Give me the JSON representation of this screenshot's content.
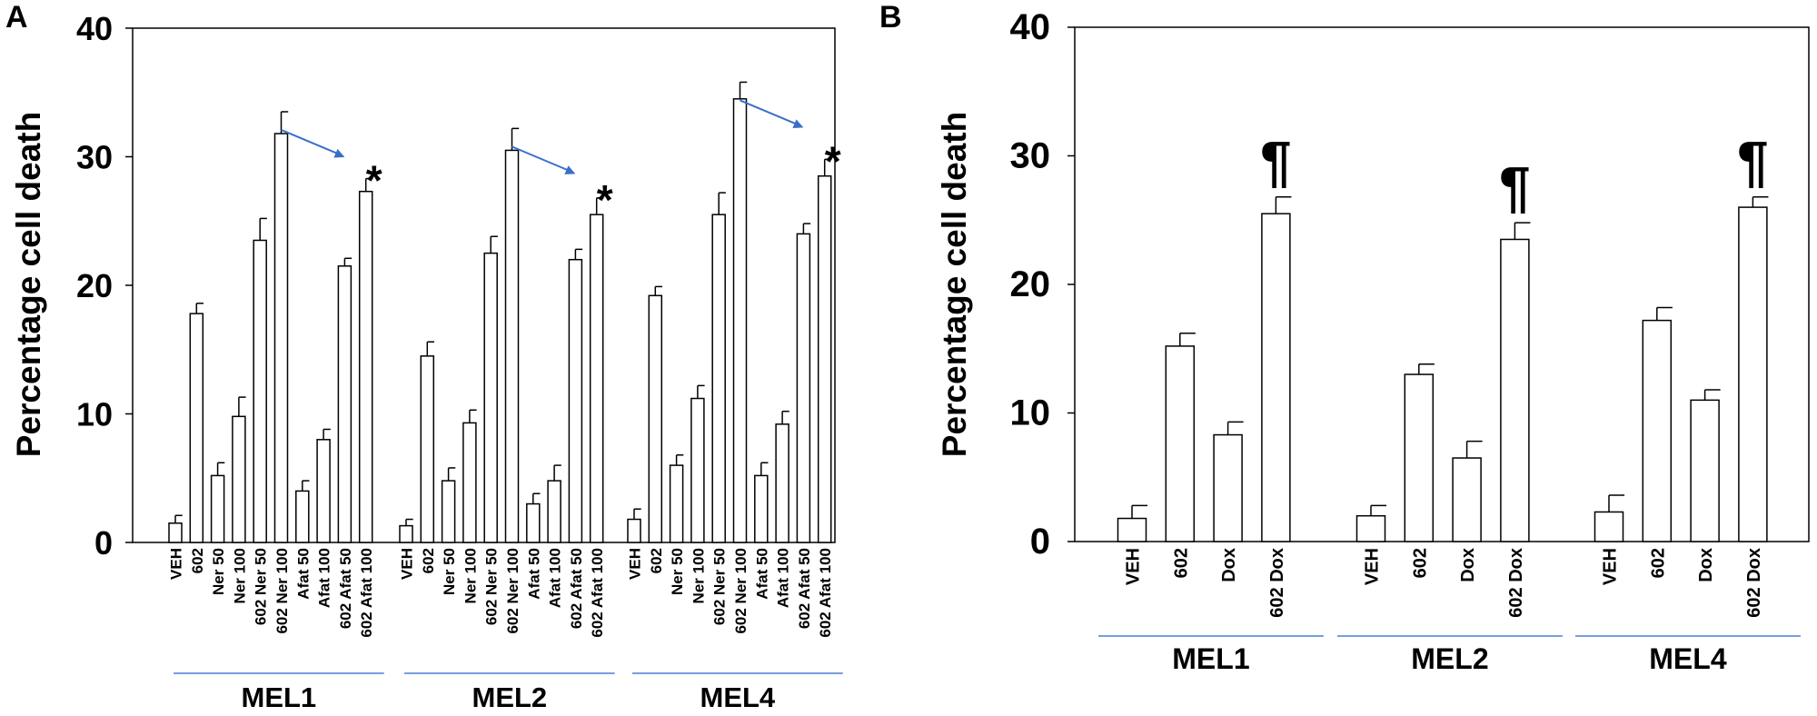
{
  "chart_data": [
    {
      "panel": "A",
      "type": "bar",
      "ylabel": "Percentage cell death",
      "ylim": [
        0,
        40
      ],
      "yticks": [
        0,
        10,
        20,
        30,
        40
      ],
      "grid": false,
      "categories": [
        "VEH",
        "602",
        "Ner 50",
        "Ner 100",
        "602 Ner 50",
        "602 Ner 100",
        "Afat 50",
        "Afat 100",
        "602 Afat 50",
        "602 Afat 100"
      ],
      "groups": [
        {
          "name": "MEL1",
          "values": [
            1.5,
            17.8,
            5.2,
            9.8,
            23.5,
            31.8,
            4.0,
            8.0,
            21.5,
            27.3
          ],
          "errors": [
            0.6,
            0.8,
            1.0,
            1.5,
            1.7,
            1.7,
            0.8,
            0.8,
            0.6,
            1.0
          ],
          "marker": "*"
        },
        {
          "name": "MEL2",
          "values": [
            1.3,
            14.5,
            4.8,
            9.3,
            22.5,
            30.5,
            3.0,
            4.8,
            22.0,
            25.5
          ],
          "errors": [
            0.5,
            1.1,
            1.0,
            1.0,
            1.3,
            1.7,
            0.8,
            1.2,
            0.8,
            1.3
          ],
          "marker": "*"
        },
        {
          "name": "MEL4",
          "values": [
            1.8,
            19.2,
            6.0,
            11.2,
            25.5,
            34.5,
            5.2,
            9.2,
            24.0,
            28.5
          ],
          "errors": [
            0.8,
            0.7,
            0.8,
            1.0,
            1.7,
            1.3,
            1.0,
            1.0,
            0.8,
            1.3
          ],
          "marker": "*"
        }
      ],
      "arrow_color": "#3a6fc9"
    },
    {
      "panel": "B",
      "type": "bar",
      "ylabel": "Percentage cell death",
      "ylim": [
        0,
        40
      ],
      "yticks": [
        0,
        10,
        20,
        30,
        40
      ],
      "grid": false,
      "categories": [
        "VEH",
        "602",
        "Dox",
        "602 Dox"
      ],
      "groups": [
        {
          "name": "MEL1",
          "values": [
            1.8,
            15.2,
            8.3,
            25.5
          ],
          "errors": [
            1.0,
            1.0,
            1.0,
            1.3
          ],
          "marker": "¶"
        },
        {
          "name": "MEL2",
          "values": [
            2.0,
            13.0,
            6.5,
            23.5
          ],
          "errors": [
            0.8,
            0.8,
            1.3,
            1.3
          ],
          "marker": "¶"
        },
        {
          "name": "MEL4",
          "values": [
            2.3,
            17.2,
            11.0,
            26.0
          ],
          "errors": [
            1.3,
            1.0,
            0.8,
            0.8
          ],
          "marker": "¶"
        }
      ]
    }
  ],
  "underline_color": "#4a7fd4"
}
